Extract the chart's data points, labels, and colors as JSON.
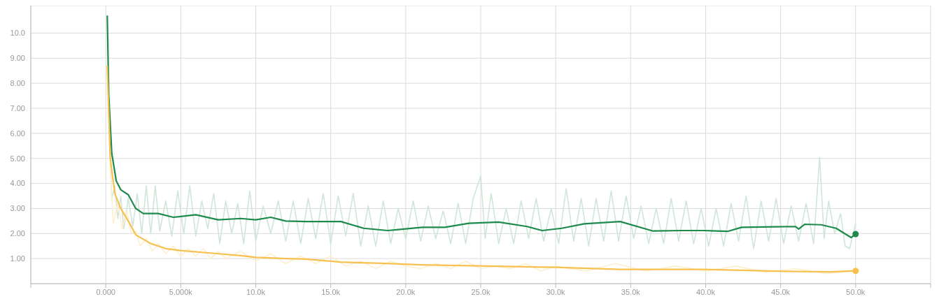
{
  "chart_data": {
    "type": "line",
    "xlim": [
      -5000,
      55000
    ],
    "ylim": [
      0,
      11.1
    ],
    "xticks": [
      {
        "value": -5000,
        "label": null
      },
      {
        "value": 0,
        "label": "0.000"
      },
      {
        "value": 5000,
        "label": "5.000k"
      },
      {
        "value": 10000,
        "label": "10.0k"
      },
      {
        "value": 15000,
        "label": "15.0k"
      },
      {
        "value": 20000,
        "label": "20.0k"
      },
      {
        "value": 25000,
        "label": "25.0k"
      },
      {
        "value": 30000,
        "label": "30.0k"
      },
      {
        "value": 35000,
        "label": "35.0k"
      },
      {
        "value": 40000,
        "label": "40.0k"
      },
      {
        "value": 45000,
        "label": "45.0k"
      },
      {
        "value": 50000,
        "label": "50.0k"
      },
      {
        "value": 55000,
        "label": null
      }
    ],
    "yticks": [
      {
        "value": 1,
        "label": "1.00"
      },
      {
        "value": 2,
        "label": "2.00"
      },
      {
        "value": 3,
        "label": "3.00"
      },
      {
        "value": 4,
        "label": "4.00"
      },
      {
        "value": 5,
        "label": "5.00"
      },
      {
        "value": 6,
        "label": "6.00"
      },
      {
        "value": 7,
        "label": "7.00"
      },
      {
        "value": 8,
        "label": "8.00"
      },
      {
        "value": 9,
        "label": "9.00"
      },
      {
        "value": 10,
        "label": "10.0"
      }
    ],
    "grid": true,
    "series": [
      {
        "color": "#cfe6d8",
        "x": [
          200,
          400,
          600,
          800,
          1000,
          1200,
          1500,
          1800,
          2100,
          2400,
          2700,
          3000,
          3300,
          3600,
          4000,
          4400,
          4800,
          5200,
          5600,
          6000,
          6400,
          6800,
          7200,
          7600,
          8000,
          8400,
          8800,
          9200,
          9600,
          10000,
          10500,
          11000,
          11500,
          12000,
          12500,
          13000,
          13500,
          14000,
          14500,
          15000,
          15500,
          16000,
          16500,
          17000,
          17500,
          18000,
          18500,
          19000,
          19500,
          20000,
          20500,
          21000,
          21500,
          22000,
          22500,
          23000,
          23500,
          24000,
          24500,
          25000,
          25300,
          25700,
          26200,
          26700,
          27200,
          27700,
          28200,
          28700,
          29200,
          29700,
          30200,
          30700,
          31200,
          31700,
          32200,
          32700,
          33200,
          33700,
          34200,
          34700,
          35200,
          35700,
          36200,
          36700,
          37200,
          37700,
          38200,
          38700,
          39200,
          39700,
          40200,
          40700,
          41200,
          41700,
          42200,
          42700,
          43200,
          43700,
          44200,
          44700,
          45200,
          45700,
          46200,
          46700,
          47200,
          47600,
          47900,
          48200,
          48600,
          49000,
          49300,
          49600,
          50000
        ],
        "values": [
          6.8,
          3.4,
          3.9,
          2.6,
          3.5,
          2.2,
          3.4,
          2.3,
          3.6,
          2.0,
          3.9,
          2.0,
          3.9,
          2.1,
          3.3,
          1.9,
          3.7,
          2.0,
          3.9,
          1.9,
          3.3,
          2.2,
          3.6,
          1.6,
          3.3,
          2.0,
          3.2,
          1.6,
          3.7,
          1.7,
          3.1,
          2.0,
          3.3,
          1.7,
          3.3,
          1.6,
          3.4,
          1.8,
          3.6,
          1.6,
          3.5,
          1.9,
          3.6,
          1.5,
          3.1,
          1.5,
          3.3,
          1.6,
          3.0,
          1.8,
          3.3,
          1.7,
          3.1,
          1.8,
          2.9,
          1.6,
          3.2,
          1.6,
          3.4,
          4.3,
          1.8,
          3.6,
          1.6,
          3.0,
          1.6,
          3.3,
          1.8,
          3.4,
          1.7,
          3.0,
          1.6,
          3.8,
          1.7,
          3.4,
          1.5,
          3.4,
          1.7,
          3.7,
          1.7,
          3.5,
          1.8,
          3.1,
          1.6,
          3.0,
          1.6,
          3.4,
          1.7,
          3.3,
          1.6,
          3.0,
          1.5,
          3.0,
          1.5,
          3.2,
          1.7,
          3.5,
          1.4,
          3.3,
          1.7,
          3.4,
          1.6,
          3.1,
          1.7,
          3.2,
          1.6,
          5.05,
          1.8,
          3.3,
          2.0,
          2.8,
          1.5,
          1.4,
          2.4
        ]
      },
      {
        "color": "#fdefcf",
        "x": [
          100,
          300,
          500,
          800,
          1100,
          1400,
          1700,
          2000,
          2300,
          2700,
          3100,
          3500,
          4000,
          4500,
          5000,
          5500,
          6000,
          6500,
          7000,
          7500,
          8000,
          9000,
          10000,
          11000,
          12000,
          13000,
          14000,
          15000,
          16000,
          17000,
          18000,
          19000,
          20000,
          21000,
          22000,
          23000,
          24000,
          25000,
          26000,
          27000,
          28000,
          29000,
          30000,
          32000,
          34000,
          36000,
          38000,
          40000,
          42000,
          44000,
          46000,
          48000,
          50000
        ],
        "values": [
          8.7,
          4.5,
          2.4,
          3.2,
          2.2,
          2.9,
          2.0,
          2.1,
          1.5,
          1.8,
          1.3,
          1.6,
          1.2,
          1.5,
          1.1,
          1.4,
          1.1,
          1.4,
          1.0,
          1.3,
          1.0,
          1.3,
          0.9,
          1.2,
          0.8,
          1.1,
          0.8,
          1.1,
          0.7,
          0.9,
          0.6,
          0.9,
          0.7,
          0.6,
          0.8,
          0.6,
          0.9,
          0.6,
          0.7,
          0.6,
          0.8,
          0.5,
          0.7,
          0.5,
          0.8,
          0.5,
          0.7,
          0.5,
          0.7,
          0.45,
          0.6,
          0.4,
          0.5
        ]
      },
      {
        "color": "#1e8a4c",
        "x": [
          100,
          200,
          400,
          700,
          1000,
          1500,
          2000,
          2500,
          3500,
          4500,
          6000,
          7500,
          9000,
          10000,
          11000,
          12000,
          13360,
          15680,
          17200,
          18800,
          19500,
          21100,
          22600,
          24200,
          26200,
          28100,
          29100,
          30400,
          31900,
          34300,
          36500,
          38400,
          39900,
          41500,
          42400,
          44600,
          46000,
          46200,
          46600,
          47700,
          48700,
          49700,
          50000
        ],
        "values": [
          10.7,
          7.5,
          5.2,
          4.1,
          3.75,
          3.55,
          3.0,
          2.8,
          2.8,
          2.65,
          2.75,
          2.55,
          2.6,
          2.55,
          2.65,
          2.5,
          2.48,
          2.48,
          2.21,
          2.12,
          2.16,
          2.25,
          2.25,
          2.41,
          2.46,
          2.28,
          2.12,
          2.21,
          2.39,
          2.48,
          2.1,
          2.12,
          2.12,
          2.09,
          2.25,
          2.27,
          2.28,
          2.18,
          2.37,
          2.35,
          2.21,
          1.84,
          1.98
        ]
      },
      {
        "color": "#f7c14f",
        "x": [
          100,
          300,
          600,
          1000,
          1500,
          2000,
          3000,
          4000,
          5000,
          7000,
          9000,
          10000,
          12000,
          13360,
          15680,
          18400,
          21100,
          25000,
          30000,
          34300,
          39900,
          45300,
          48300,
          50000
        ],
        "values": [
          8.7,
          5.0,
          3.6,
          3.0,
          2.5,
          1.95,
          1.6,
          1.4,
          1.32,
          1.22,
          1.12,
          1.05,
          1.0,
          0.98,
          0.86,
          0.81,
          0.75,
          0.71,
          0.65,
          0.57,
          0.57,
          0.49,
          0.47,
          0.51
        ]
      }
    ]
  }
}
